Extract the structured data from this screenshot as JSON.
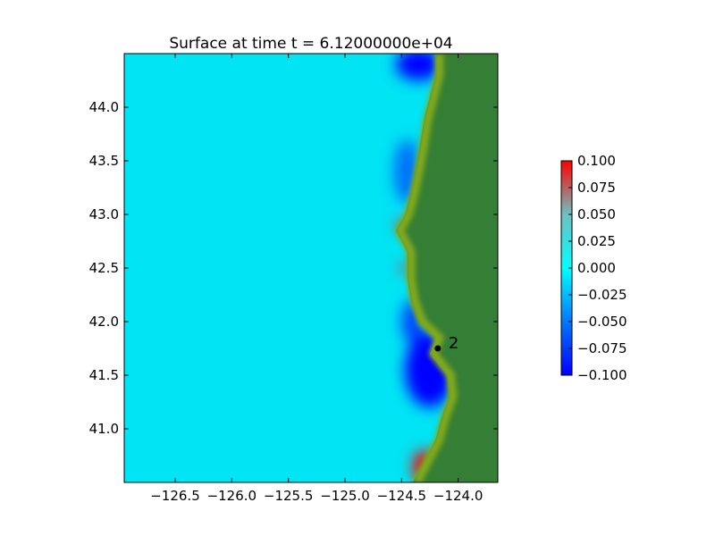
{
  "chart_data": {
    "type": "heatmap",
    "title": "Surface at time t = 6.12000000e+04",
    "xlabel": "",
    "ylabel": "",
    "xlim": [
      -126.95,
      -123.65
    ],
    "ylim": [
      40.5,
      44.5
    ],
    "xticks": [
      -126.5,
      -126.0,
      -125.5,
      -125.0,
      -124.5,
      -124.0
    ],
    "xtick_labels": [
      "−126.5",
      "−126.0",
      "−125.5",
      "−125.0",
      "−124.5",
      "−124.0"
    ],
    "yticks": [
      41.0,
      41.5,
      42.0,
      42.5,
      43.0,
      43.5,
      44.0
    ],
    "ytick_labels": [
      "41.0",
      "41.5",
      "42.0",
      "42.5",
      "43.0",
      "43.5",
      "44.0"
    ],
    "grid": false,
    "colorbar": {
      "vmin": -0.1,
      "vmax": 0.1,
      "ticks": [
        0.1,
        0.075,
        0.05,
        0.025,
        0.0,
        -0.025,
        -0.05,
        -0.075,
        -0.1
      ],
      "tick_labels": [
        "0.100",
        "0.075",
        "0.050",
        "0.025",
        "0.000",
        "−0.025",
        "−0.050",
        "−0.075",
        "−0.100"
      ],
      "colors": [
        "#0000ff",
        "#00aaff",
        "#00ffff",
        "#70c0c0",
        "#ff0000"
      ]
    },
    "colors": {
      "ocean_background": "#00e4f4",
      "land": "#357e35",
      "shallow_land": "#82aa1a",
      "negative_anomaly": "#0000ff",
      "positive_anomaly": "#ff0000"
    },
    "coastline": [
      [
        -124.2,
        44.5
      ],
      [
        -124.2,
        44.3
      ],
      [
        -124.25,
        44.1
      ],
      [
        -124.3,
        43.9
      ],
      [
        -124.33,
        43.7
      ],
      [
        -124.38,
        43.4
      ],
      [
        -124.42,
        43.2
      ],
      [
        -124.47,
        43.0
      ],
      [
        -124.55,
        42.85
      ],
      [
        -124.45,
        42.65
      ],
      [
        -124.45,
        42.4
      ],
      [
        -124.42,
        42.2
      ],
      [
        -124.35,
        42.0
      ],
      [
        -124.2,
        41.85
      ],
      [
        -124.25,
        41.7
      ],
      [
        -124.1,
        41.5
      ],
      [
        -124.08,
        41.3
      ],
      [
        -124.15,
        41.1
      ],
      [
        -124.2,
        40.9
      ],
      [
        -124.3,
        40.7
      ],
      [
        -124.4,
        40.5
      ]
    ],
    "anomalies": [
      {
        "lon": -124.25,
        "lat": 41.55,
        "value": -0.1,
        "rx": 0.22,
        "ry": 0.35
      },
      {
        "lon": -124.4,
        "lat": 42.0,
        "value": -0.07,
        "rx": 0.1,
        "ry": 0.2
      },
      {
        "lon": -124.35,
        "lat": 44.4,
        "value": -0.1,
        "rx": 0.2,
        "ry": 0.15
      },
      {
        "lon": -124.45,
        "lat": 43.4,
        "value": -0.05,
        "rx": 0.12,
        "ry": 0.3
      },
      {
        "lon": -124.3,
        "lat": 40.65,
        "value": 0.1,
        "rx": 0.1,
        "ry": 0.15
      },
      {
        "lon": -124.5,
        "lat": 42.9,
        "value": 0.08,
        "rx": 0.05,
        "ry": 0.05
      },
      {
        "lon": -124.47,
        "lat": 42.5,
        "value": 0.08,
        "rx": 0.04,
        "ry": 0.05
      }
    ],
    "gauges": [
      {
        "label": "2",
        "lon": -124.18,
        "lat": 41.75
      }
    ]
  }
}
